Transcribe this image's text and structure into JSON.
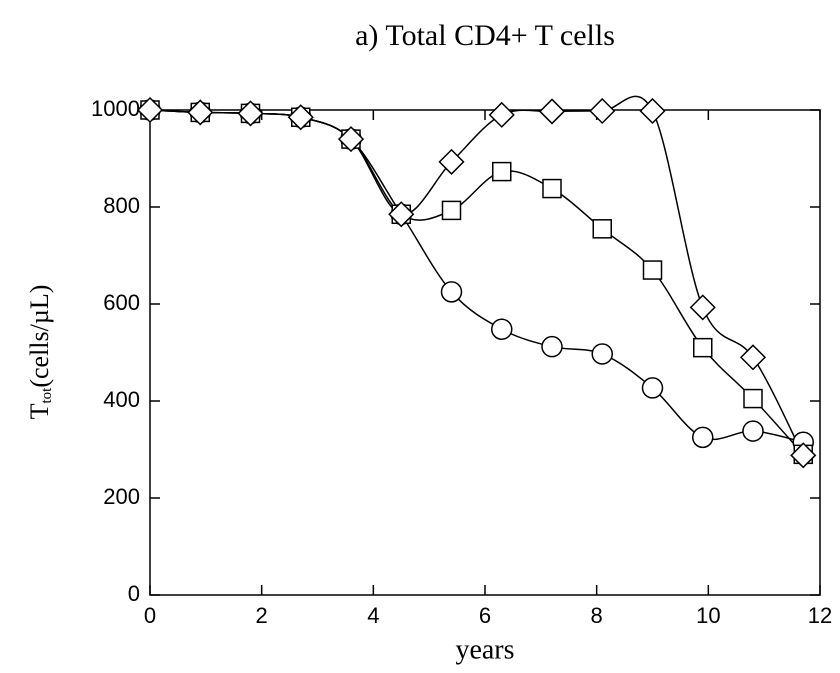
{
  "chart_data": {
    "type": "line",
    "title": "a) Total CD4+ T cells",
    "xlabel": "years",
    "ylabel": {
      "main": "T",
      "sub": "tot",
      "rest": "(cells/µL)"
    },
    "x": [
      0,
      0.9,
      1.8,
      2.7,
      3.6,
      4.5,
      5.4,
      6.3,
      7.2,
      8.1,
      9.0,
      9.9,
      10.8,
      11.7
    ],
    "series": [
      {
        "marker": "circle",
        "color": "#000000",
        "values": [
          1000,
          995,
          993,
          985,
          940,
          785,
          625,
          548,
          512,
          497,
          427,
          325,
          338,
          315
        ]
      },
      {
        "marker": "square",
        "color": "#000000",
        "values": [
          1000,
          995,
          993,
          985,
          940,
          785,
          793,
          873,
          838,
          755,
          670,
          510,
          405,
          290
        ]
      },
      {
        "marker": "diamond",
        "color": "#000000",
        "values": [
          1000,
          995,
          993,
          985,
          940,
          785,
          893,
          990,
          997,
          998,
          998,
          593,
          490,
          288
        ]
      }
    ],
    "xlim": [
      0,
      12
    ],
    "xticks": [
      0,
      2,
      4,
      6,
      8,
      10,
      12
    ],
    "ylim": [
      0,
      1000
    ],
    "yticks": [
      0,
      200,
      400,
      600,
      800,
      1000
    ]
  }
}
